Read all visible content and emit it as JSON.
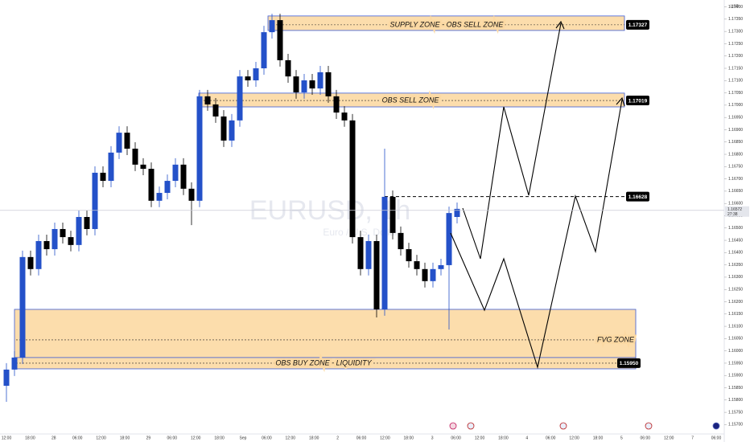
{
  "chart_data": {
    "type": "candlestick",
    "symbol_watermark": "EURUSD, 1h",
    "description_watermark": "Euro / U.S. Dollar",
    "currency": "USD",
    "up_color": "#2451c9",
    "down_color": "#000000",
    "open": [
      1.15858,
      1.15924,
      1.15973,
      1.16382,
      1.16333,
      1.16447,
      1.16414,
      1.16496,
      1.16463,
      1.16431,
      1.16545,
      1.16496,
      1.16725,
      1.16692,
      1.16807,
      1.16888,
      1.16823,
      1.16758,
      1.16741,
      1.16611,
      1.16643,
      1.16692,
      1.16758,
      1.1666,
      1.16611,
      1.17036,
      1.17003,
      1.16954,
      1.16856,
      1.16938,
      1.17117,
      1.17101,
      1.1715,
      1.17297,
      1.17346,
      1.17183,
      1.17117,
      1.17052,
      1.17101,
      1.17068,
      1.17134,
      1.17036,
      1.1697,
      1.16938,
      1.16463,
      1.16333,
      1.16447,
      1.16169,
      1.16627,
      1.1648,
      1.16414,
      1.16365,
      1.16333,
      1.16284,
      1.16333,
      1.16349,
      1.16545
    ],
    "high": [
      1.1595,
      1.15999,
      1.16408,
      1.16408,
      1.16473,
      1.16473,
      1.16522,
      1.16522,
      1.16489,
      1.16571,
      1.16571,
      1.16751,
      1.16751,
      1.16833,
      1.16914,
      1.16914,
      1.16849,
      1.16784,
      1.16767,
      1.16669,
      1.16718,
      1.16784,
      1.16784,
      1.16686,
      1.17062,
      1.17062,
      1.17029,
      1.1698,
      1.16964,
      1.17143,
      1.17143,
      1.17176,
      1.17323,
      1.17372,
      1.17372,
      1.17209,
      1.17143,
      1.17127,
      1.17127,
      1.1716,
      1.1716,
      1.17062,
      1.16996,
      1.16964,
      1.16489,
      1.16473,
      1.16473,
      1.16823,
      1.16653,
      1.16506,
      1.1644,
      1.16391,
      1.16359,
      1.16359,
      1.16375,
      1.16587,
      1.16604
    ],
    "low": [
      1.15793,
      1.15898,
      1.15947,
      1.16307,
      1.16307,
      1.16388,
      1.16388,
      1.16437,
      1.16405,
      1.16405,
      1.1647,
      1.1647,
      1.16666,
      1.16666,
      1.16781,
      1.16797,
      1.16732,
      1.16715,
      1.16585,
      1.16585,
      1.16617,
      1.16666,
      1.16634,
      1.16512,
      1.16585,
      1.16977,
      1.16928,
      1.1683,
      1.1683,
      1.16912,
      1.17075,
      1.17075,
      1.17124,
      1.17271,
      1.17157,
      1.17091,
      1.17026,
      1.17026,
      1.17042,
      1.17042,
      1.1701,
      1.16944,
      1.16912,
      1.16437,
      1.16307,
      1.16307,
      1.16136,
      1.16143,
      1.16454,
      1.16388,
      1.16339,
      1.16307,
      1.16258,
      1.16258,
      1.16307,
      1.16087,
      1.16519
    ],
    "close": [
      1.15924,
      1.15973,
      1.16382,
      1.16333,
      1.16447,
      1.16414,
      1.16496,
      1.16463,
      1.16431,
      1.16545,
      1.16496,
      1.16725,
      1.16692,
      1.16807,
      1.16888,
      1.16823,
      1.16758,
      1.16741,
      1.16611,
      1.16643,
      1.16692,
      1.16758,
      1.1666,
      1.16611,
      1.17036,
      1.17003,
      1.16954,
      1.16856,
      1.16938,
      1.17117,
      1.17101,
      1.1715,
      1.17297,
      1.17346,
      1.17183,
      1.17117,
      1.17052,
      1.17101,
      1.17068,
      1.17134,
      1.17036,
      1.1697,
      1.16938,
      1.16463,
      1.16333,
      1.16447,
      1.16169,
      1.16627,
      1.1648,
      1.16414,
      1.16365,
      1.16333,
      1.16284,
      1.16333,
      1.16349,
      1.16561,
      1.16578
    ],
    "ylim": [
      1.15662,
      1.17428
    ],
    "yticks": [
      {
        "value": 1.174,
        "label": "1.17400"
      },
      {
        "value": 1.1735,
        "label": "1.17350"
      },
      {
        "value": 1.173,
        "label": "1.17300"
      },
      {
        "value": 1.1725,
        "label": "1.17250"
      },
      {
        "value": 1.172,
        "label": "1.17200"
      },
      {
        "value": 1.1715,
        "label": "1.17150"
      },
      {
        "value": 1.171,
        "label": "1.17100"
      },
      {
        "value": 1.1705,
        "label": "1.17050"
      },
      {
        "value": 1.17,
        "label": "1.17000"
      },
      {
        "value": 1.1695,
        "label": "1.16950"
      },
      {
        "value": 1.169,
        "label": "1.16900"
      },
      {
        "value": 1.1685,
        "label": "1.16850"
      },
      {
        "value": 1.168,
        "label": "1.16800"
      },
      {
        "value": 1.1675,
        "label": "1.16750"
      },
      {
        "value": 1.167,
        "label": "1.16700"
      },
      {
        "value": 1.1665,
        "label": "1.16650"
      },
      {
        "value": 1.166,
        "label": "1.16600"
      },
      {
        "value": 1.1655,
        "label": "1.16550"
      },
      {
        "value": 1.165,
        "label": "1.16500"
      },
      {
        "value": 1.1645,
        "label": "1.16450"
      },
      {
        "value": 1.164,
        "label": "1.16400"
      },
      {
        "value": 1.1635,
        "label": "1.16350"
      },
      {
        "value": 1.163,
        "label": "1.16300"
      },
      {
        "value": 1.1625,
        "label": "1.16250"
      },
      {
        "value": 1.162,
        "label": "1.16200"
      },
      {
        "value": 1.1615,
        "label": "1.16150"
      },
      {
        "value": 1.161,
        "label": "1.16100"
      },
      {
        "value": 1.1605,
        "label": "1.16050"
      },
      {
        "value": 1.16,
        "label": "1.16000"
      },
      {
        "value": 1.1595,
        "label": "1.15950"
      },
      {
        "value": 1.159,
        "label": "1.15900"
      },
      {
        "value": 1.1585,
        "label": "1.15850"
      },
      {
        "value": 1.158,
        "label": "1.15800"
      },
      {
        "value": 1.1575,
        "label": "1.15750"
      },
      {
        "value": 1.157,
        "label": "1.15700"
      }
    ],
    "xtick_labels": [
      "12:00",
      "18:00",
      "28",
      "06:00",
      "12:00",
      "18:00",
      "29",
      "06:00",
      "12:00",
      "18:00",
      "Sep",
      "06:00",
      "12:00",
      "18:00",
      "2",
      "06:00",
      "12:00",
      "18:00",
      "3",
      "06:00",
      "12:00",
      "18:00",
      "4",
      "06:00",
      "12:00",
      "18:00",
      "5",
      "06:00",
      "12:00",
      "7",
      "06:00"
    ],
    "zones": [
      {
        "label": "SUPPLY ZONE  - OBS SELL ZONE",
        "top": 1.17363,
        "bottom": 1.17304,
        "tag_level": 1.17327
      },
      {
        "label": "OBS SELL ZONE",
        "top": 1.17049,
        "bottom": 1.16993,
        "tag_level": 1.17019
      },
      {
        "label": "FVG ZONE",
        "top": 1.16169,
        "bottom": 1.15973,
        "line_level": 1.16045
      },
      {
        "label": "OBS BUY ZONE - LIQUIDITY",
        "top": 1.15973,
        "bottom": 1.15927,
        "tag_level": {
          "value": 1.1595,
          "label": "1.15950"
        }
      }
    ],
    "resistance_level": 1.16628,
    "last_price": 1.16572,
    "countdown": "27:38"
  }
}
